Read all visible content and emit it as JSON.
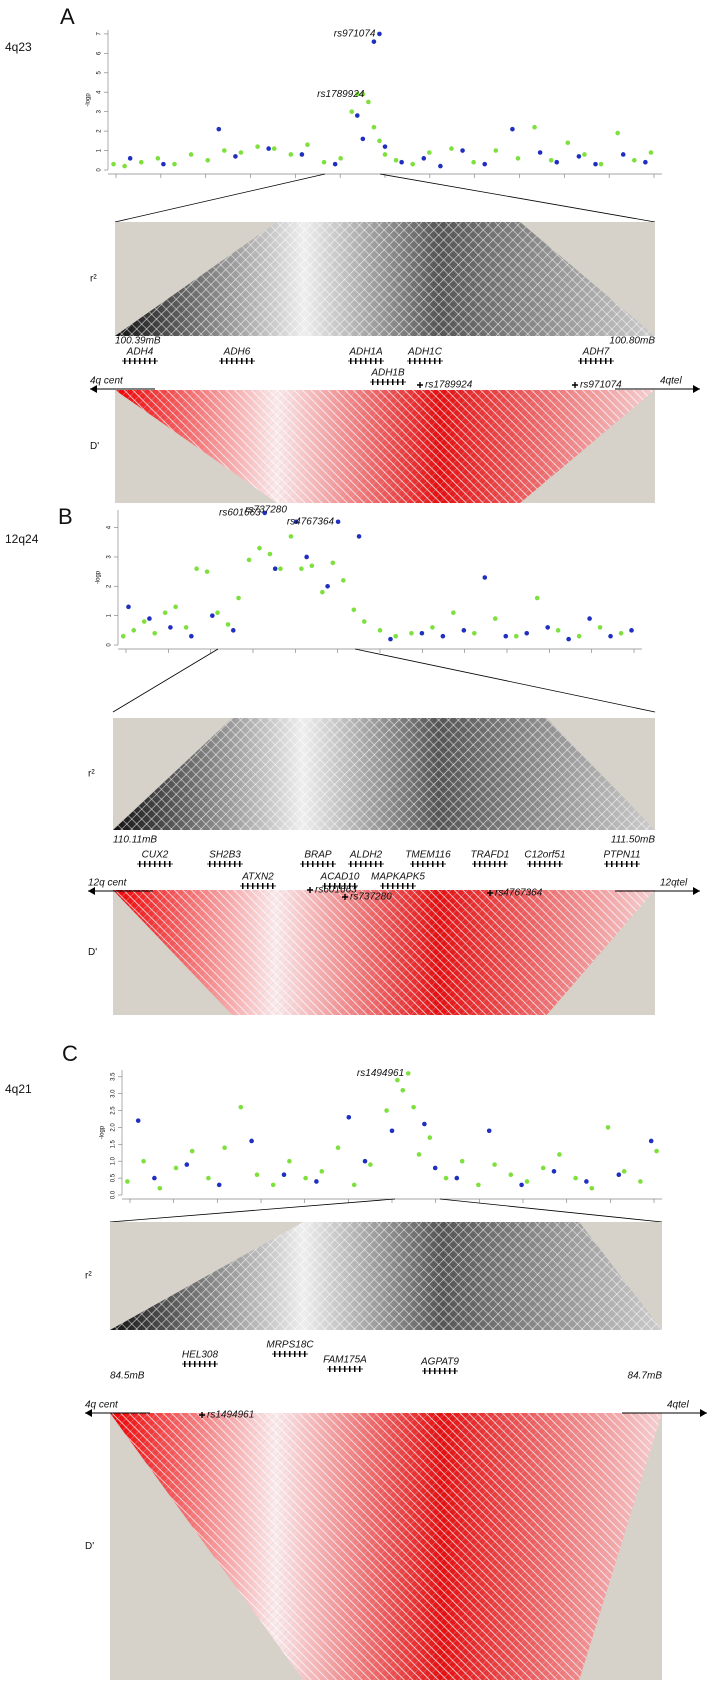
{
  "chart_data": [
    {
      "type": "scatter",
      "panel": "A",
      "region": "4q23",
      "ylabel": "-logp",
      "xlim": [
        0,
        100
      ],
      "ylim": [
        0,
        7.2
      ],
      "yticks": [
        0,
        1,
        2,
        3,
        4,
        5,
        6,
        7
      ],
      "series": [
        {
          "color": "#7ee03c",
          "x": [
            1,
            3,
            6,
            9,
            12,
            15,
            18,
            21,
            24,
            27,
            30,
            33,
            36,
            39,
            42,
            44,
            45,
            46,
            47,
            48,
            49,
            50,
            52,
            55,
            58,
            62,
            66,
            70,
            74,
            77,
            80,
            83,
            86,
            89,
            92,
            95,
            98
          ],
          "y": [
            0.3,
            0.2,
            0.4,
            0.6,
            0.3,
            0.8,
            0.5,
            1.0,
            0.9,
            1.2,
            1.1,
            0.8,
            1.3,
            0.4,
            0.6,
            3.0,
            3.9,
            3.9,
            3.5,
            2.2,
            1.5,
            0.8,
            0.5,
            0.3,
            0.9,
            1.1,
            0.4,
            1.0,
            0.6,
            2.2,
            0.5,
            1.4,
            0.8,
            0.3,
            1.9,
            0.5,
            0.9
          ]
        },
        {
          "color": "#1f2fbf",
          "x": [
            4,
            10,
            20,
            23,
            29,
            35,
            41,
            45,
            46,
            48,
            49,
            50,
            53,
            57,
            60,
            64,
            68,
            73,
            78,
            81,
            85,
            88,
            93,
            97
          ],
          "y": [
            0.6,
            0.3,
            2.1,
            0.7,
            1.1,
            0.8,
            0.3,
            2.8,
            1.6,
            6.6,
            7.0,
            1.2,
            0.4,
            0.6,
            0.2,
            1.0,
            0.3,
            2.1,
            0.9,
            0.4,
            0.7,
            0.3,
            0.8,
            0.4
          ]
        }
      ],
      "annotations": [
        {
          "text": "rs971074",
          "x": 49,
          "y": 7.0
        },
        {
          "text": "rs1789924",
          "x": 47,
          "y": 3.9
        }
      ],
      "ld": {
        "r2_label": "r²",
        "d_label": "D'",
        "start": "100.39mB",
        "end": "100.80mB",
        "left_arm": "4q cent",
        "right_arm": "4qtel",
        "genes": [
          "ADH4",
          "ADH6",
          "ADH1A",
          "ADH1C",
          "ADH1B",
          "ADH7"
        ],
        "snps": [
          "rs1789924",
          "rs971074"
        ]
      }
    },
    {
      "type": "scatter",
      "panel": "B",
      "region": "12q24",
      "ylabel": "-logp",
      "xlim": [
        0,
        100
      ],
      "ylim": [
        0,
        4.6
      ],
      "yticks": [
        0,
        1,
        2,
        3,
        4
      ],
      "series": [
        {
          "color": "#7ee03c",
          "x": [
            1,
            3,
            5,
            7,
            9,
            11,
            13,
            15,
            17,
            19,
            21,
            23,
            25,
            27,
            29,
            31,
            33,
            35,
            37,
            39,
            41,
            43,
            45,
            47,
            50,
            53,
            56,
            60,
            64,
            68,
            72,
            76,
            80,
            84,
            88,
            92,
            96
          ],
          "y": [
            0.3,
            0.5,
            0.8,
            0.4,
            1.1,
            1.3,
            0.6,
            2.6,
            2.5,
            1.1,
            0.7,
            1.6,
            2.9,
            3.3,
            3.1,
            2.6,
            3.7,
            2.6,
            2.7,
            1.8,
            2.8,
            2.2,
            1.2,
            0.8,
            0.5,
            0.3,
            0.4,
            0.6,
            1.1,
            0.4,
            0.9,
            0.3,
            1.6,
            0.5,
            0.3,
            0.6,
            0.4
          ]
        },
        {
          "color": "#1f2fbf",
          "x": [
            2,
            6,
            10,
            14,
            18,
            22,
            28,
            30,
            34,
            36,
            40,
            42,
            46,
            52,
            58,
            62,
            66,
            70,
            74,
            78,
            82,
            86,
            90,
            94,
            98
          ],
          "y": [
            1.3,
            0.9,
            0.6,
            0.3,
            1.0,
            0.5,
            4.5,
            2.6,
            4.2,
            3.0,
            2.0,
            4.2,
            3.7,
            0.2,
            0.4,
            0.3,
            0.5,
            2.3,
            0.3,
            0.4,
            0.6,
            0.2,
            0.9,
            0.3,
            0.5
          ]
        }
      ],
      "annotations": [
        {
          "text": "rs601663",
          "x": 28,
          "y": 4.5
        },
        {
          "text": "rs737280",
          "x": 33,
          "y": 4.6
        },
        {
          "text": "rs4767364",
          "x": 42,
          "y": 4.2
        }
      ],
      "ld": {
        "r2_label": "r²",
        "d_label": "D'",
        "start": "110.11mB",
        "end": "111.50mB",
        "left_arm": "12q cent",
        "right_arm": "12qtel",
        "genes": [
          "CUX2",
          "SH2B3",
          "ATXN2",
          "BRAP",
          "ACAD10",
          "ALDH2",
          "MAPKAPK5",
          "TMEM116",
          "TRAFD1",
          "C12orf51",
          "PTPN11"
        ],
        "snps": [
          "rs601663",
          "rs737280",
          "rs4767364"
        ]
      }
    },
    {
      "type": "scatter",
      "panel": "C",
      "region": "4q21",
      "ylabel": "-logp",
      "xlim": [
        0,
        100
      ],
      "ylim": [
        0,
        3.7
      ],
      "yticks": [
        {
          "value": 0,
          "label": "0.0"
        },
        0.5,
        {
          "value": 1,
          "label": "1.0"
        },
        1.5,
        {
          "value": 2,
          "label": "2.0"
        },
        2.5,
        {
          "value": 3,
          "label": "3.0"
        },
        3.5
      ],
      "series": [
        {
          "color": "#7ee03c",
          "x": [
            1,
            4,
            7,
            10,
            13,
            16,
            19,
            22,
            25,
            28,
            31,
            34,
            37,
            40,
            43,
            46,
            49,
            51,
            52,
            53,
            54,
            55,
            57,
            60,
            63,
            66,
            69,
            72,
            75,
            78,
            81,
            84,
            87,
            90,
            93,
            96,
            99
          ],
          "y": [
            0.4,
            1.0,
            0.2,
            0.8,
            1.3,
            0.5,
            1.4,
            2.6,
            0.6,
            0.3,
            1.0,
            0.5,
            0.7,
            1.4,
            0.3,
            0.9,
            2.5,
            3.4,
            3.1,
            3.6,
            2.6,
            1.2,
            1.7,
            0.5,
            1.0,
            0.3,
            0.9,
            0.6,
            0.4,
            0.8,
            1.2,
            0.5,
            0.2,
            2.0,
            0.7,
            0.4,
            1.3
          ]
        },
        {
          "color": "#1f2fbf",
          "x": [
            3,
            6,
            12,
            18,
            24,
            30,
            36,
            42,
            45,
            50,
            56,
            58,
            62,
            68,
            74,
            80,
            86,
            92,
            98
          ],
          "y": [
            2.2,
            0.5,
            0.9,
            0.3,
            1.6,
            0.6,
            0.4,
            2.3,
            1.0,
            1.9,
            2.1,
            0.8,
            0.5,
            1.9,
            0.3,
            0.7,
            0.4,
            0.6,
            1.6
          ]
        }
      ],
      "annotations": [
        {
          "text": "rs1494961",
          "x": 53,
          "y": 3.6
        }
      ],
      "ld": {
        "r2_label": "r²",
        "d_label": "D'",
        "start": "84.5mB",
        "end": "84.7mB",
        "left_arm": "4q cent",
        "right_arm": "4qtel",
        "genes": [
          "HEL308",
          "MRPS18C",
          "FAM175A",
          "AGPAT9"
        ],
        "snps": [
          "rs1494961"
        ]
      }
    }
  ]
}
